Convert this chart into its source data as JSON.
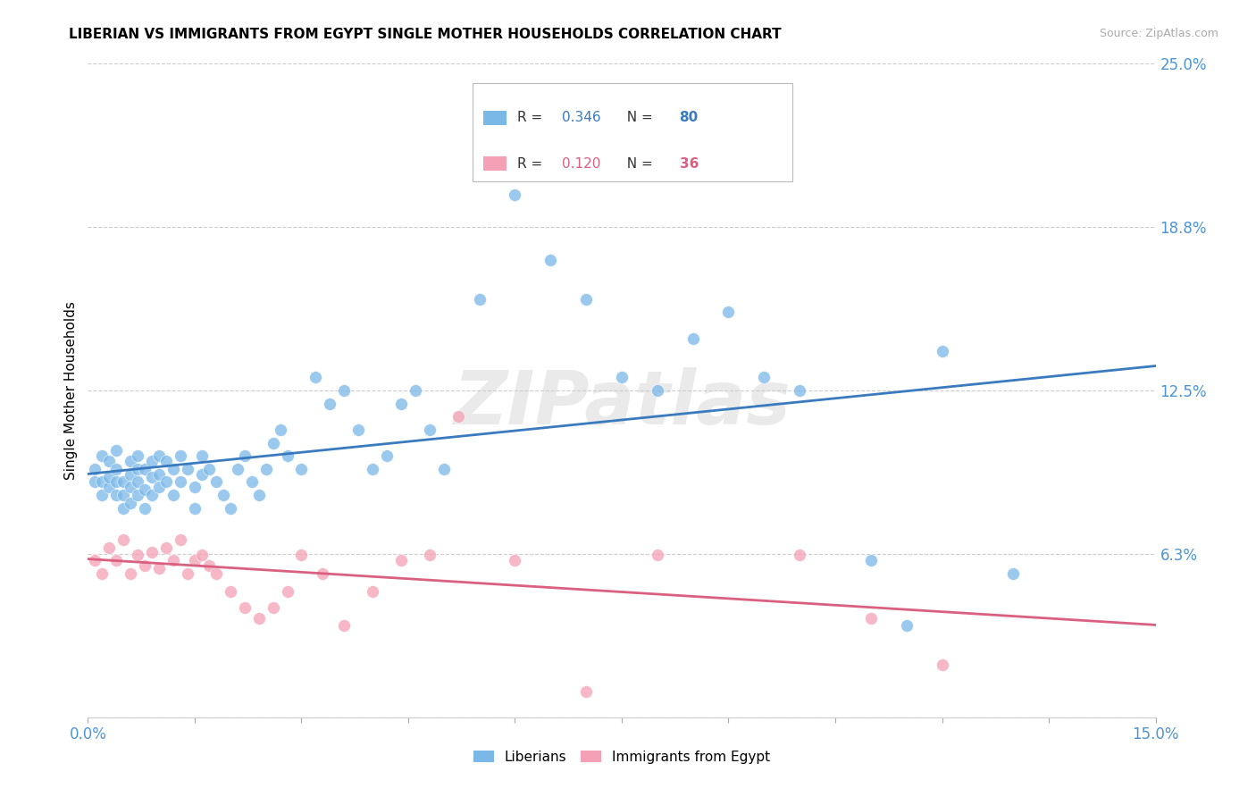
{
  "title": "LIBERIAN VS IMMIGRANTS FROM EGYPT SINGLE MOTHER HOUSEHOLDS CORRELATION CHART",
  "source": "Source: ZipAtlas.com",
  "ylabel": "Single Mother Households",
  "xlim": [
    0.0,
    0.15
  ],
  "ylim": [
    0.0,
    0.25
  ],
  "yticks": [
    0.0,
    0.0625,
    0.125,
    0.1875,
    0.25
  ],
  "ytick_labels": [
    "",
    "6.3%",
    "12.5%",
    "18.8%",
    "25.0%"
  ],
  "blue_color": "#7ab8e8",
  "pink_color": "#f4a0b5",
  "blue_line_color": "#3a7bbf",
  "pink_line_color": "#d96080",
  "legend_R1": "0.346",
  "legend_N1": "80",
  "legend_R2": "0.120",
  "legend_N2": "36",
  "legend_label1": "Liberians",
  "legend_label2": "Immigrants from Egypt",
  "watermark": "ZIPatlas",
  "blue_dots_x": [
    0.001,
    0.001,
    0.002,
    0.002,
    0.002,
    0.003,
    0.003,
    0.003,
    0.004,
    0.004,
    0.004,
    0.004,
    0.005,
    0.005,
    0.005,
    0.006,
    0.006,
    0.006,
    0.006,
    0.007,
    0.007,
    0.007,
    0.007,
    0.008,
    0.008,
    0.008,
    0.009,
    0.009,
    0.009,
    0.01,
    0.01,
    0.01,
    0.011,
    0.011,
    0.012,
    0.012,
    0.013,
    0.013,
    0.014,
    0.015,
    0.015,
    0.016,
    0.016,
    0.017,
    0.018,
    0.019,
    0.02,
    0.021,
    0.022,
    0.023,
    0.024,
    0.025,
    0.026,
    0.027,
    0.028,
    0.03,
    0.032,
    0.034,
    0.036,
    0.038,
    0.04,
    0.042,
    0.044,
    0.046,
    0.048,
    0.05,
    0.055,
    0.06,
    0.065,
    0.07,
    0.075,
    0.08,
    0.085,
    0.09,
    0.095,
    0.1,
    0.11,
    0.115,
    0.12,
    0.13
  ],
  "blue_dots_y": [
    0.09,
    0.095,
    0.085,
    0.09,
    0.1,
    0.088,
    0.092,
    0.098,
    0.085,
    0.09,
    0.095,
    0.102,
    0.08,
    0.085,
    0.09,
    0.082,
    0.088,
    0.093,
    0.098,
    0.085,
    0.09,
    0.095,
    0.1,
    0.08,
    0.087,
    0.095,
    0.085,
    0.092,
    0.098,
    0.088,
    0.093,
    0.1,
    0.09,
    0.098,
    0.085,
    0.095,
    0.09,
    0.1,
    0.095,
    0.08,
    0.088,
    0.093,
    0.1,
    0.095,
    0.09,
    0.085,
    0.08,
    0.095,
    0.1,
    0.09,
    0.085,
    0.095,
    0.105,
    0.11,
    0.1,
    0.095,
    0.13,
    0.12,
    0.125,
    0.11,
    0.095,
    0.1,
    0.12,
    0.125,
    0.11,
    0.095,
    0.16,
    0.2,
    0.175,
    0.16,
    0.13,
    0.125,
    0.145,
    0.155,
    0.13,
    0.125,
    0.06,
    0.035,
    0.14,
    0.055
  ],
  "pink_dots_x": [
    0.001,
    0.002,
    0.003,
    0.004,
    0.005,
    0.006,
    0.007,
    0.008,
    0.009,
    0.01,
    0.011,
    0.012,
    0.013,
    0.014,
    0.015,
    0.016,
    0.017,
    0.018,
    0.02,
    0.022,
    0.024,
    0.026,
    0.028,
    0.03,
    0.033,
    0.036,
    0.04,
    0.044,
    0.048,
    0.052,
    0.06,
    0.07,
    0.08,
    0.1,
    0.11,
    0.12
  ],
  "pink_dots_y": [
    0.06,
    0.055,
    0.065,
    0.06,
    0.068,
    0.055,
    0.062,
    0.058,
    0.063,
    0.057,
    0.065,
    0.06,
    0.068,
    0.055,
    0.06,
    0.062,
    0.058,
    0.055,
    0.048,
    0.042,
    0.038,
    0.042,
    0.048,
    0.062,
    0.055,
    0.035,
    0.048,
    0.06,
    0.062,
    0.115,
    0.06,
    0.01,
    0.062,
    0.062,
    0.038,
    0.02
  ]
}
